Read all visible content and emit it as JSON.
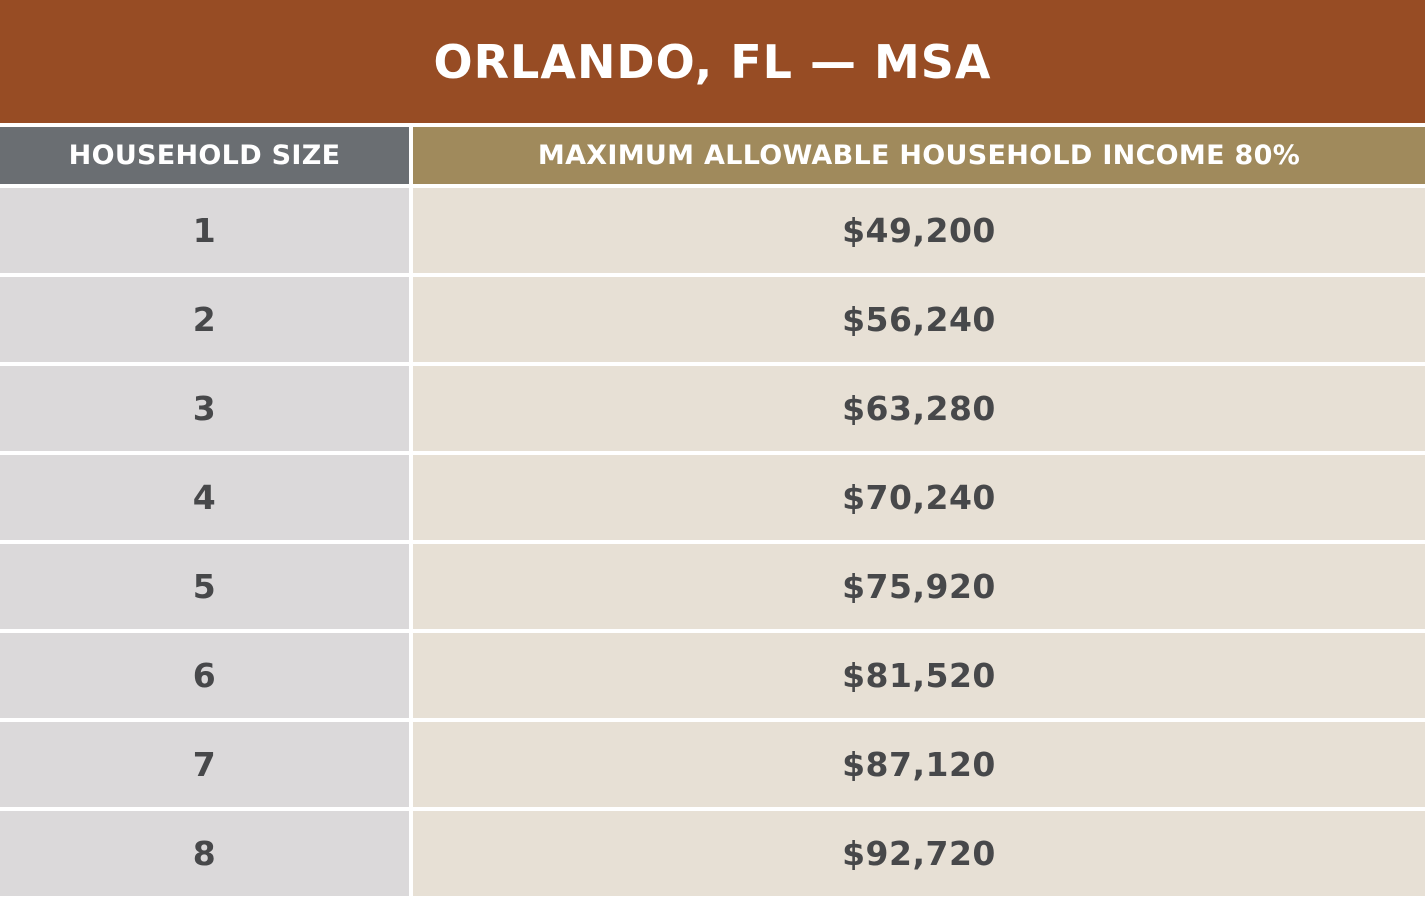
{
  "title": "ORLANDO, FL — MSA",
  "columns": {
    "household_size": "HOUSEHOLD SIZE",
    "max_income": "MAXIMUM ALLOWABLE HOUSEHOLD INCOME 80%"
  },
  "rows": [
    {
      "size": "1",
      "income": "$49,200"
    },
    {
      "size": "2",
      "income": "$56,240"
    },
    {
      "size": "3",
      "income": "$63,280"
    },
    {
      "size": "4",
      "income": "$70,240"
    },
    {
      "size": "5",
      "income": "$75,920"
    },
    {
      "size": "6",
      "income": "$81,520"
    },
    {
      "size": "7",
      "income": "$87,120"
    },
    {
      "size": "8",
      "income": "$92,720"
    }
  ],
  "colors": {
    "title_bg": "#974c24",
    "size_header_bg": "#6a6e72",
    "income_header_bg": "#a08a5c",
    "size_cell_bg": "#dbd9da",
    "income_cell_bg": "#e7e0d5",
    "cell_text": "#47484a"
  }
}
